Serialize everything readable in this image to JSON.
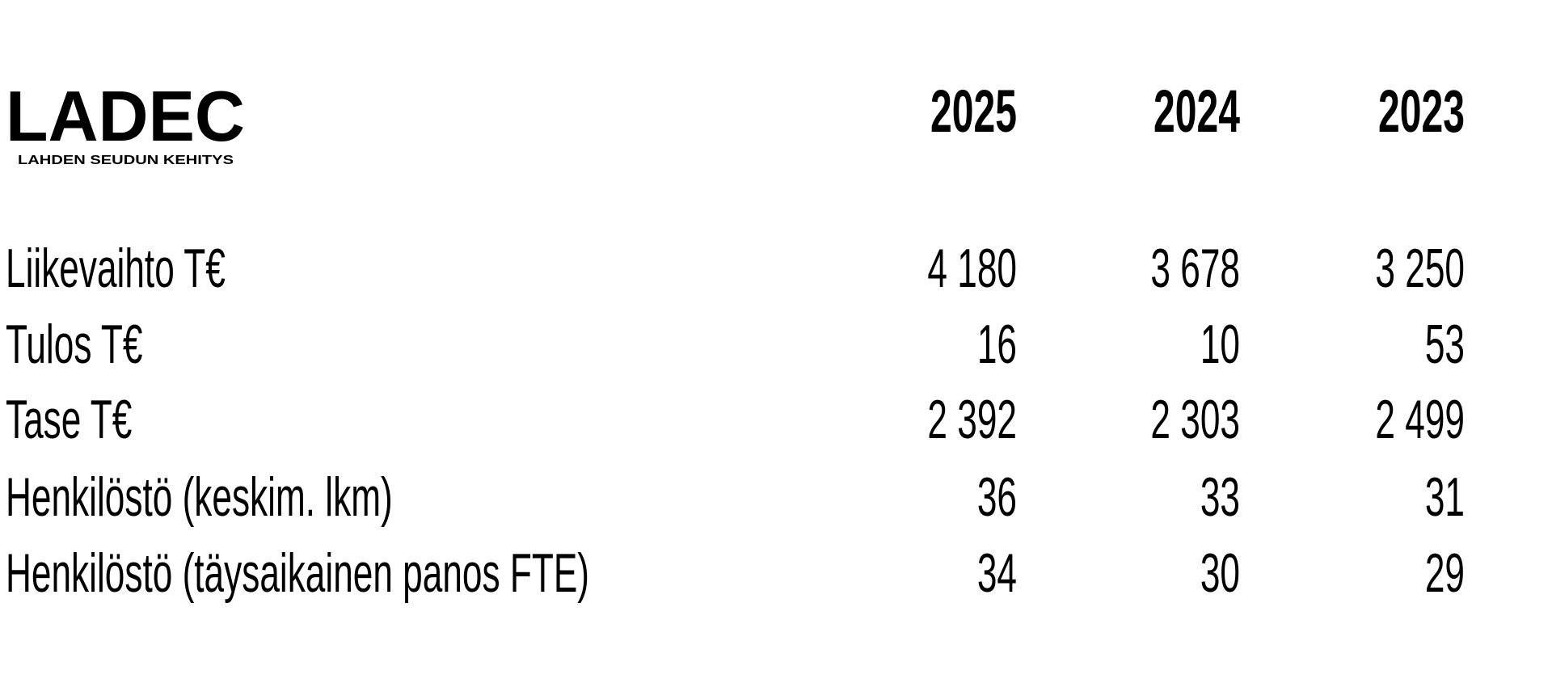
{
  "logo": {
    "name": "LADEC",
    "tagline": "LAHDEN SEUDUN KEHITYS"
  },
  "table": {
    "columns": [
      "2025",
      "2024",
      "2023"
    ],
    "rows": [
      {
        "label": "Liikevaihto T€",
        "values": [
          "4 180",
          "3 678",
          "3 250"
        ]
      },
      {
        "label": "Tulos T€",
        "values": [
          "16",
          "10",
          "53"
        ]
      },
      {
        "label": "Tase T€",
        "values": [
          "2 392",
          "2 303",
          "2 499"
        ]
      },
      {
        "label": "Henkilöstö (keskim. lkm)",
        "values": [
          "36",
          "33",
          "31"
        ]
      },
      {
        "label": "Henkilöstö (täysaikainen panos FTE)",
        "values": [
          "34",
          "30",
          "29"
        ]
      }
    ]
  }
}
